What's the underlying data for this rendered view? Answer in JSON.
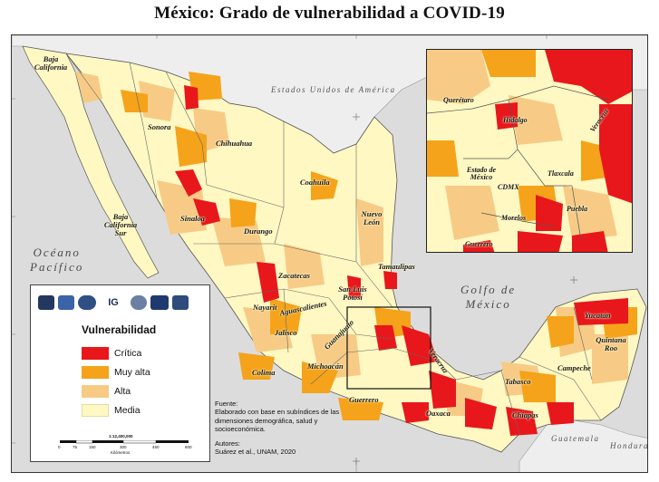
{
  "title": "México: Grado de vulnerabilidad a COVID-19",
  "sea_labels": {
    "pacific_line1": "Océano",
    "pacific_line2": "Pacífico",
    "gulf_line1": "Golfo de",
    "gulf_line2": "México"
  },
  "countries": {
    "usa": "Estados Unidos de América",
    "guatemala": "Guatemala",
    "honduras": "Honduras"
  },
  "states": {
    "baja_california": "Baja California",
    "sonora": "Sonora",
    "chihuahua": "Chihuahua",
    "coahuila": "Coahuila",
    "baja_california_sur": "Baja California Sur",
    "sinaloa": "Sinaloa",
    "durango": "Durango",
    "nuevo_leon": "Nuevo León",
    "tamaulipas": "Tamaulipas",
    "zacatecas": "Zacatecas",
    "san_luis_potosi": "San Luis Potosí",
    "nayarit": "Nayarit",
    "aguascalientes": "Aguascalientes",
    "jalisco": "Jalisco",
    "guanajuato": "Guanajuato",
    "michoacan": "Michoacán",
    "colima": "Colima",
    "guerrero": "Guerrero",
    "oaxaca": "Oaxaca",
    "veracruz": "Veracruz",
    "tabasco": "Tabasco",
    "chiapas": "Chiapas",
    "campeche": "Campeche",
    "yucatan": "Yucatán",
    "quintana_roo": "Quintana Roo"
  },
  "inset_states": {
    "queretaro": "Querétaro",
    "hidalgo": "Hidalgo",
    "veracruz": "Veracruz",
    "estado_de_mexico": "Estado de México",
    "cdmx": "CDMX",
    "tlaxcala": "Tlaxcala",
    "morelos": "Morelos",
    "puebla": "Puebla",
    "guerrero": "Guerrero"
  },
  "legend": {
    "title": "Vulnerabilidad",
    "items": [
      {
        "label": "Crítica",
        "color": "#e8171b"
      },
      {
        "label": "Muy alta",
        "color": "#f5a31a"
      },
      {
        "label": "Alta",
        "color": "#f7cb86"
      },
      {
        "label": "Media",
        "color": "#fff8c2"
      }
    ],
    "logos": [
      "logo-unam",
      "logo-ciga",
      "logo-crim",
      "logo-ig",
      "logo-conacyt",
      "logo-unam-2",
      "logo-unam-3"
    ],
    "logo_text_ig": "IG",
    "scale": "1:12,400,000",
    "scale_ticks": [
      "0",
      "75",
      "150",
      "300",
      "450",
      "600"
    ],
    "scale_unit": "Kilómetros"
  },
  "source": {
    "heading": "Fuente:",
    "text": "Elaborado con base en subíndices de las dimensiones demográfica, salud y socioeconómica.",
    "authors_heading": "Autores:",
    "authors": "Suárez et al., UNAM, 2020"
  },
  "colors": {
    "critica": "#e8171b",
    "muy_alta": "#f5a31a",
    "alta": "#f7cb86",
    "media": "#fff8c2",
    "water": "#dcdcdc",
    "foreign_land": "#eeeeee",
    "border": "#555555"
  }
}
